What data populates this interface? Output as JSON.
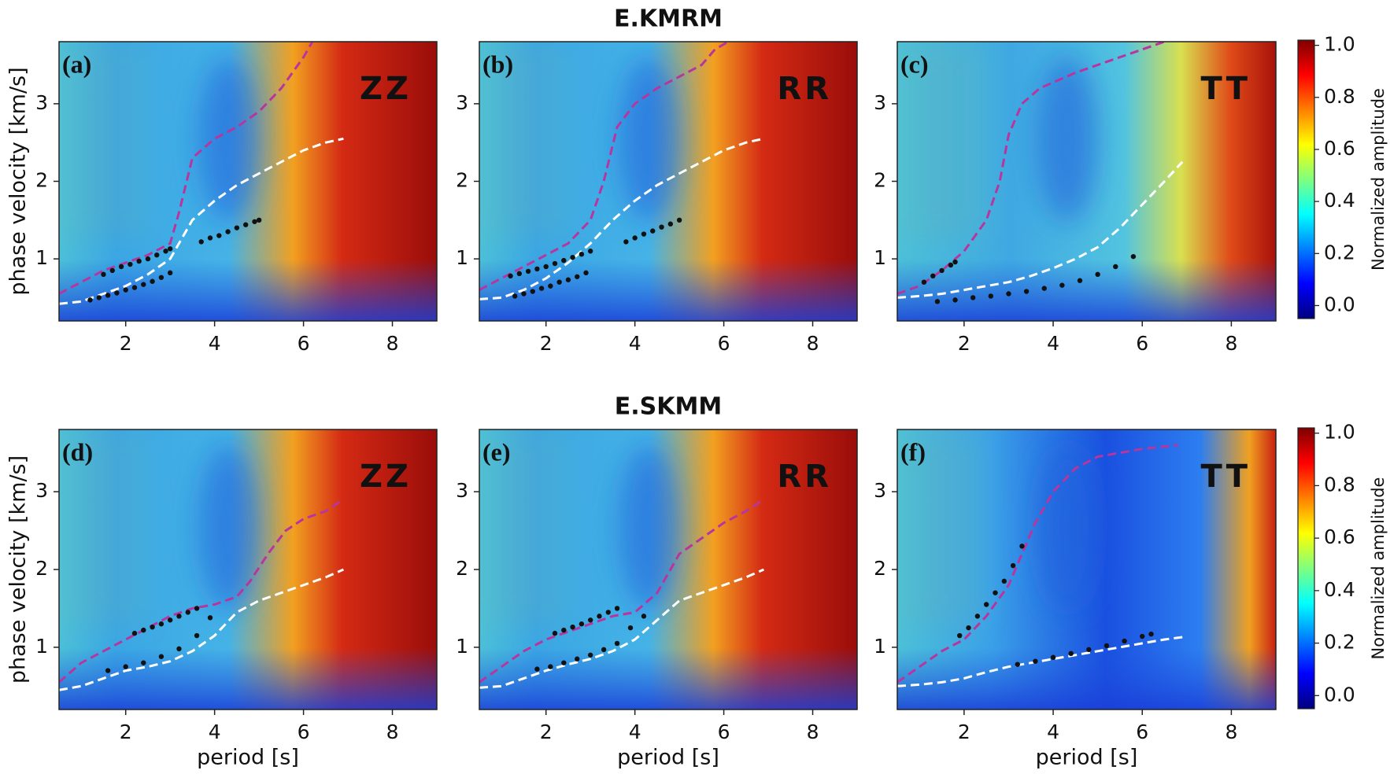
{
  "chart_data": [
    {
      "type": "line",
      "panel_label": "(a)",
      "component": "ZZ",
      "ylabel": "phase velocity [km/s]",
      "xlim": [
        0.5,
        9
      ],
      "ylim": [
        0.2,
        3.8
      ],
      "xticks": [
        2,
        4,
        6,
        8
      ],
      "yticks": [
        1,
        2,
        3
      ],
      "background": "red-right",
      "series": [
        {
          "style": "dashed",
          "color": "#ffffff",
          "x": [
            0.5,
            1,
            1.5,
            2,
            2.5,
            3,
            3.5,
            4,
            4.5,
            5,
            5.5,
            6,
            6.5,
            6.9
          ],
          "values": [
            0.42,
            0.45,
            0.55,
            0.65,
            0.8,
            1.0,
            1.5,
            1.75,
            1.95,
            2.1,
            2.25,
            2.4,
            2.5,
            2.55
          ]
        },
        {
          "style": "dashed",
          "color": "#b8359e",
          "x": [
            0.5,
            1,
            1.5,
            2,
            2.5,
            3,
            3.2,
            3.5,
            4,
            4.5,
            5,
            5.5,
            6,
            6.2
          ],
          "values": [
            0.55,
            0.7,
            0.85,
            0.95,
            1.05,
            1.2,
            1.6,
            2.3,
            2.55,
            2.7,
            2.9,
            3.2,
            3.6,
            3.8
          ]
        },
        {
          "style": "dots",
          "color": "#111111",
          "x": [
            1.2,
            1.4,
            1.6,
            1.8,
            2.0,
            2.2,
            2.4,
            2.6,
            2.8,
            3.0
          ],
          "values": [
            0.47,
            0.5,
            0.53,
            0.56,
            0.6,
            0.63,
            0.67,
            0.71,
            0.76,
            0.82
          ]
        },
        {
          "style": "dots",
          "color": "#111111",
          "x": [
            1.5,
            1.7,
            1.9,
            2.1,
            2.3,
            2.5,
            2.7,
            2.9,
            3.0
          ],
          "values": [
            0.8,
            0.85,
            0.9,
            0.93,
            0.97,
            1.0,
            1.05,
            1.1,
            1.13
          ]
        },
        {
          "style": "dots",
          "color": "#111111",
          "x": [
            3.7,
            3.9,
            4.1,
            4.3,
            4.5,
            4.7,
            4.9,
            5.0
          ],
          "values": [
            1.22,
            1.27,
            1.3,
            1.35,
            1.4,
            1.44,
            1.48,
            1.5
          ]
        }
      ]
    },
    {
      "type": "line",
      "title": "E.KMRM",
      "panel_label": "(b)",
      "component": "RR",
      "xlim": [
        0.5,
        9
      ],
      "ylim": [
        0.2,
        3.8
      ],
      "xticks": [
        2,
        4,
        6,
        8
      ],
      "yticks": [
        1,
        2,
        3
      ],
      "background": "red-right",
      "series": [
        {
          "style": "dashed",
          "color": "#ffffff",
          "x": [
            0.5,
            1,
            1.5,
            2,
            2.5,
            3,
            3.5,
            4,
            4.5,
            5,
            5.5,
            6,
            6.5,
            6.9
          ],
          "values": [
            0.48,
            0.5,
            0.6,
            0.75,
            0.95,
            1.2,
            1.5,
            1.75,
            1.95,
            2.1,
            2.25,
            2.4,
            2.5,
            2.55
          ]
        },
        {
          "style": "dashed",
          "color": "#b8359e",
          "x": [
            0.5,
            1,
            1.5,
            2,
            2.5,
            3,
            3.3,
            3.6,
            4,
            4.5,
            5,
            5.5,
            5.8,
            6.1
          ],
          "values": [
            0.6,
            0.75,
            0.9,
            1.05,
            1.2,
            1.5,
            2.0,
            2.7,
            3.0,
            3.2,
            3.35,
            3.5,
            3.7,
            3.8
          ]
        },
        {
          "style": "dots",
          "color": "#111111",
          "x": [
            1.2,
            1.4,
            1.6,
            1.8,
            2.0,
            2.2,
            2.4,
            2.6,
            2.8,
            3.0
          ],
          "values": [
            0.78,
            0.81,
            0.84,
            0.87,
            0.9,
            0.94,
            0.98,
            1.02,
            1.06,
            1.1
          ]
        },
        {
          "style": "dots",
          "color": "#111111",
          "x": [
            1.3,
            1.5,
            1.7,
            1.9,
            2.1,
            2.3,
            2.5,
            2.7,
            2.9
          ],
          "values": [
            0.52,
            0.55,
            0.58,
            0.62,
            0.65,
            0.7,
            0.73,
            0.77,
            0.82
          ]
        },
        {
          "style": "dots",
          "color": "#111111",
          "x": [
            3.8,
            4.0,
            4.2,
            4.4,
            4.6,
            4.8,
            5.0
          ],
          "values": [
            1.22,
            1.27,
            1.32,
            1.36,
            1.41,
            1.45,
            1.5
          ]
        }
      ]
    },
    {
      "type": "line",
      "panel_label": "(c)",
      "component": "TT",
      "xlim": [
        0.5,
        9
      ],
      "ylim": [
        0.2,
        3.8
      ],
      "xticks": [
        2,
        4,
        6,
        8
      ],
      "yticks": [
        1,
        2,
        3
      ],
      "background": "red-diagonal",
      "series": [
        {
          "style": "dashed",
          "color": "#ffffff",
          "x": [
            0.5,
            1,
            1.5,
            2,
            2.5,
            3,
            3.5,
            4,
            4.5,
            5,
            5.5,
            6,
            6.5,
            6.9
          ],
          "values": [
            0.5,
            0.52,
            0.55,
            0.6,
            0.65,
            0.7,
            0.78,
            0.88,
            1.0,
            1.15,
            1.4,
            1.7,
            2.0,
            2.25
          ]
        },
        {
          "style": "dashed",
          "color": "#b8359e",
          "x": [
            0.5,
            1,
            1.5,
            2,
            2.5,
            2.8,
            3.0,
            3.3,
            3.7,
            4.5,
            5.5,
            6.5
          ],
          "values": [
            0.55,
            0.65,
            0.85,
            1.1,
            1.5,
            2.0,
            2.6,
            3.0,
            3.2,
            3.4,
            3.6,
            3.8
          ]
        },
        {
          "style": "dots",
          "color": "#111111",
          "x": [
            1.1,
            1.3,
            1.5,
            1.7,
            1.8
          ],
          "values": [
            0.7,
            0.78,
            0.85,
            0.92,
            0.96
          ]
        },
        {
          "style": "dots",
          "color": "#111111",
          "x": [
            1.4,
            1.8,
            2.2,
            2.6,
            3.0,
            3.4,
            3.8,
            4.2,
            4.6,
            5.0,
            5.4,
            5.8
          ],
          "values": [
            0.45,
            0.47,
            0.5,
            0.52,
            0.55,
            0.58,
            0.62,
            0.66,
            0.72,
            0.8,
            0.9,
            1.03
          ]
        }
      ]
    },
    {
      "type": "line",
      "panel_label": "(d)",
      "component": "ZZ",
      "ylabel": "phase velocity [km/s]",
      "xlabel": "period [s]",
      "xlim": [
        0.5,
        9
      ],
      "ylim": [
        0.2,
        3.8
      ],
      "xticks": [
        2,
        4,
        6,
        8
      ],
      "yticks": [
        1,
        2,
        3
      ],
      "background": "red-right",
      "series": [
        {
          "style": "dashed",
          "color": "#ffffff",
          "x": [
            0.5,
            1,
            1.5,
            2,
            2.5,
            3,
            3.5,
            4,
            4.5,
            5,
            5.5,
            6,
            6.5,
            6.9
          ],
          "values": [
            0.45,
            0.5,
            0.6,
            0.7,
            0.75,
            0.82,
            0.95,
            1.15,
            1.45,
            1.6,
            1.7,
            1.8,
            1.9,
            2.0
          ]
        },
        {
          "style": "dashed",
          "color": "#b8359e",
          "x": [
            0.5,
            1,
            1.5,
            2,
            2.5,
            3,
            3.5,
            4,
            4.5,
            4.8,
            5.2,
            5.6,
            6,
            6.5,
            6.9
          ],
          "values": [
            0.55,
            0.8,
            0.95,
            1.1,
            1.25,
            1.4,
            1.5,
            1.55,
            1.65,
            1.85,
            2.2,
            2.5,
            2.65,
            2.75,
            2.9
          ]
        },
        {
          "style": "dots",
          "color": "#111111",
          "x": [
            2.2,
            2.4,
            2.6,
            2.8,
            3.0,
            3.2,
            3.4,
            3.6
          ],
          "values": [
            1.18,
            1.22,
            1.26,
            1.3,
            1.35,
            1.4,
            1.45,
            1.5
          ]
        },
        {
          "style": "dots",
          "color": "#111111",
          "x": [
            1.6,
            2.0,
            2.4,
            2.8,
            3.2,
            3.6,
            3.9
          ],
          "values": [
            0.7,
            0.75,
            0.8,
            0.88,
            0.98,
            1.15,
            1.38
          ]
        }
      ]
    },
    {
      "type": "line",
      "title": "E.SKMM",
      "panel_label": "(e)",
      "component": "RR",
      "xlabel": "period [s]",
      "xlim": [
        0.5,
        9
      ],
      "ylim": [
        0.2,
        3.8
      ],
      "xticks": [
        2,
        4,
        6,
        8
      ],
      "yticks": [
        1,
        2,
        3
      ],
      "background": "red-right",
      "series": [
        {
          "style": "dashed",
          "color": "#ffffff",
          "x": [
            0.5,
            1,
            1.5,
            2,
            2.5,
            3,
            3.5,
            4,
            4.5,
            5,
            5.5,
            6,
            6.5,
            6.9
          ],
          "values": [
            0.48,
            0.5,
            0.6,
            0.7,
            0.78,
            0.85,
            0.95,
            1.1,
            1.35,
            1.6,
            1.7,
            1.8,
            1.9,
            2.0
          ]
        },
        {
          "style": "dashed",
          "color": "#b8359e",
          "x": [
            0.5,
            1,
            1.5,
            2,
            2.5,
            3,
            3.5,
            4,
            4.5,
            5,
            5.5,
            6,
            6.5,
            6.9
          ],
          "values": [
            0.55,
            0.75,
            0.95,
            1.1,
            1.2,
            1.3,
            1.4,
            1.45,
            1.7,
            2.2,
            2.4,
            2.6,
            2.75,
            2.9
          ]
        },
        {
          "style": "dots",
          "color": "#111111",
          "x": [
            2.2,
            2.4,
            2.6,
            2.8,
            3.0,
            3.2,
            3.4,
            3.6
          ],
          "values": [
            1.18,
            1.22,
            1.26,
            1.3,
            1.35,
            1.4,
            1.45,
            1.5
          ]
        },
        {
          "style": "dots",
          "color": "#111111",
          "x": [
            1.8,
            2.1,
            2.4,
            2.7,
            3.0,
            3.3,
            3.6,
            3.9,
            4.2
          ],
          "values": [
            0.72,
            0.75,
            0.8,
            0.85,
            0.9,
            0.97,
            1.05,
            1.25,
            1.4
          ]
        }
      ]
    },
    {
      "type": "line",
      "panel_label": "(f)",
      "component": "TT",
      "xlabel": "period [s]",
      "xlim": [
        0.5,
        9
      ],
      "ylim": [
        0.2,
        3.8
      ],
      "xticks": [
        2,
        4,
        6,
        8
      ],
      "yticks": [
        1,
        2,
        3
      ],
      "background": "blue-right",
      "series": [
        {
          "style": "dashed",
          "color": "#ffffff",
          "x": [
            0.5,
            1,
            1.5,
            2,
            2.5,
            3,
            3.5,
            4,
            4.5,
            5,
            5.5,
            6,
            6.5,
            6.9
          ],
          "values": [
            0.5,
            0.52,
            0.55,
            0.6,
            0.68,
            0.75,
            0.8,
            0.85,
            0.9,
            0.95,
            1.0,
            1.05,
            1.1,
            1.13
          ]
        },
        {
          "style": "dashed",
          "color": "#b8359e",
          "x": [
            0.5,
            1,
            1.5,
            2,
            2.5,
            3,
            3.3,
            3.6,
            4,
            4.5,
            5,
            5.5,
            6,
            6.8
          ],
          "values": [
            0.55,
            0.75,
            0.95,
            1.1,
            1.4,
            1.8,
            2.2,
            2.6,
            3.0,
            3.3,
            3.45,
            3.5,
            3.55,
            3.6
          ]
        },
        {
          "style": "dots",
          "color": "#111111",
          "x": [
            1.9,
            2.1,
            2.3,
            2.5,
            2.7,
            2.9,
            3.1,
            3.3
          ],
          "values": [
            1.15,
            1.25,
            1.4,
            1.55,
            1.7,
            1.85,
            2.05,
            2.3
          ]
        },
        {
          "style": "dots",
          "color": "#111111",
          "x": [
            3.2,
            3.6,
            4.0,
            4.4,
            4.8,
            5.2,
            5.6,
            6.0,
            6.2
          ],
          "values": [
            0.78,
            0.82,
            0.87,
            0.92,
            0.97,
            1.02,
            1.08,
            1.14,
            1.17
          ]
        }
      ]
    },
    {
      "type": "colorbar",
      "label": "Normalized amplitude",
      "ylim": [
        -0.05,
        1.02
      ],
      "yticks": [
        {
          "value": 0,
          "label": "0.0"
        },
        0.2,
        0.4,
        0.6,
        0.8,
        {
          "value": 1,
          "label": "1.0"
        }
      ],
      "colors": [
        "#00007f",
        "#0000ff",
        "#007fff",
        "#00ffff",
        "#7fff7f",
        "#ffff00",
        "#ff7f00",
        "#ff0000",
        "#7f0000"
      ]
    },
    {
      "type": "colorbar",
      "label": "Normalized amplitude",
      "ylim": [
        -0.05,
        1.02
      ],
      "yticks": [
        {
          "value": 0,
          "label": "0.0"
        },
        0.2,
        0.4,
        0.6,
        0.8,
        {
          "value": 1,
          "label": "1.0"
        }
      ],
      "colors": [
        "#00007f",
        "#0000ff",
        "#007fff",
        "#00ffff",
        "#7fff7f",
        "#ffff00",
        "#ff7f00",
        "#ff0000",
        "#7f0000"
      ]
    }
  ]
}
